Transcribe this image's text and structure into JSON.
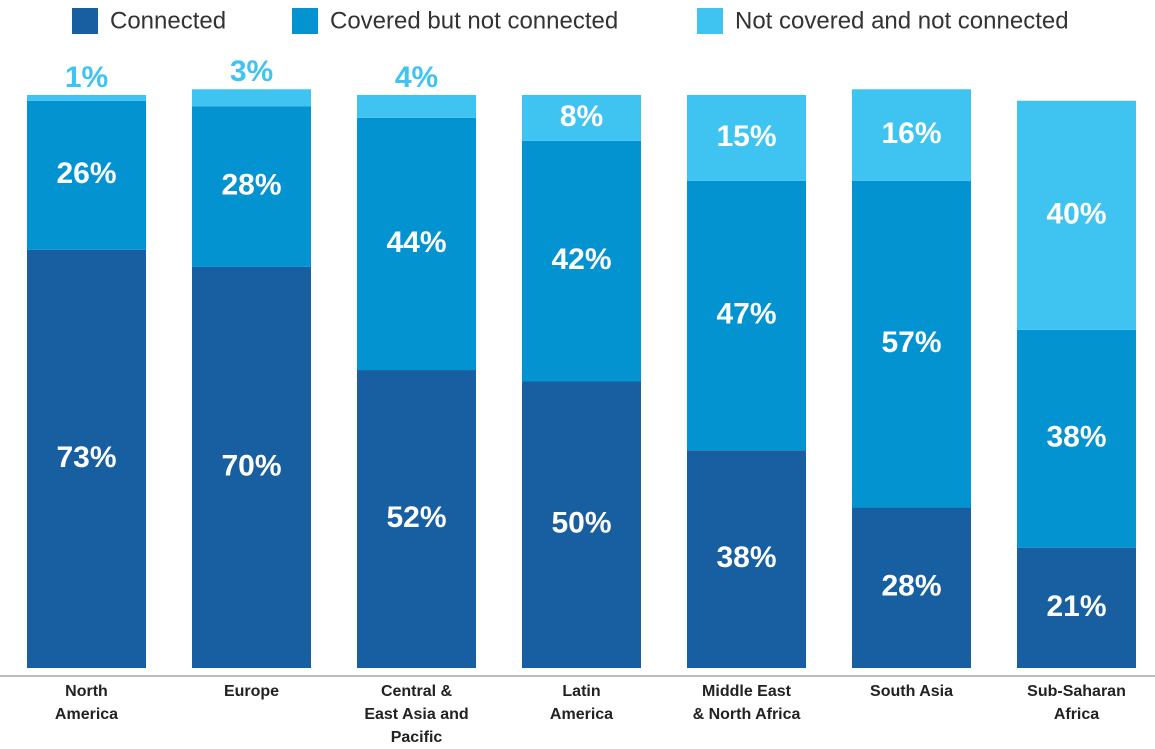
{
  "chart_data": {
    "type": "stacked-bar",
    "categories": [
      "North\nAmerica",
      "Europe",
      "Central &\nEast Asia and\nPacific",
      "Latin\nAmerica",
      "Middle East\n& North Africa",
      "South Asia",
      "Sub-Saharan\nAfrica"
    ],
    "series": [
      {
        "name": "Connected",
        "color": "#175fa0",
        "values": [
          73,
          70,
          52,
          50,
          38,
          28,
          21
        ],
        "value_labels": [
          "73%",
          "70%",
          "52%",
          "50%",
          "38%",
          "28%",
          "21%"
        ]
      },
      {
        "name": "Covered but not connected",
        "color": "#0393d1",
        "values": [
          26,
          28,
          44,
          42,
          47,
          57,
          38
        ],
        "value_labels": [
          "26%",
          "28%",
          "44%",
          "42%",
          "47%",
          "57%",
          "38%"
        ]
      },
      {
        "name": "Not covered and not connected",
        "color": "#3fc4f2",
        "values": [
          1,
          3,
          4,
          8,
          15,
          16,
          40
        ],
        "value_labels": [
          "1%",
          "3%",
          "4%",
          "8%",
          "15%",
          "16%",
          "40%"
        ]
      }
    ]
  }
}
